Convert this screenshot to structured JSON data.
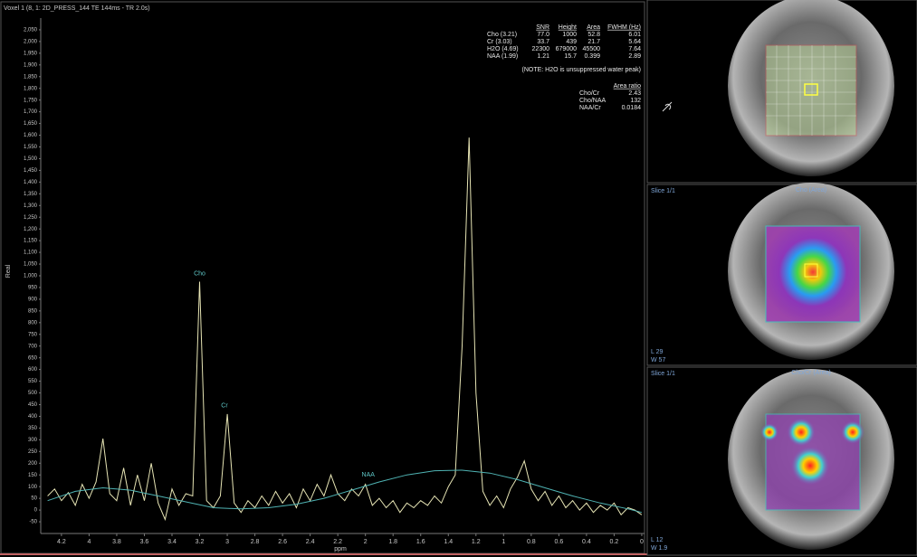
{
  "header": {
    "title": "Voxel 1 (8, 1: 2D_PRESS_144 TE 144ms - TR 2.0s)"
  },
  "chart_data": {
    "type": "line",
    "x_label": "ppm",
    "y_label": "Real",
    "xlim": [
      4.35,
      -0.02
    ],
    "ylim": [
      -100,
      2100
    ],
    "xticks": [
      4.2,
      4,
      3.8,
      3.6,
      3.4,
      3.2,
      3,
      2.8,
      2.6,
      2.4,
      2.2,
      2,
      1.8,
      1.6,
      1.4,
      1.2,
      1,
      0.8,
      0.6,
      0.4,
      0.2,
      0
    ],
    "yticks": [
      -50,
      0,
      50,
      100,
      150,
      200,
      250,
      300,
      350,
      400,
      450,
      500,
      550,
      600,
      650,
      700,
      750,
      800,
      850,
      900,
      950,
      {
        "value": 1000,
        "label": "1,000"
      },
      {
        "value": 1050,
        "label": "1,050"
      },
      {
        "value": 1100,
        "label": "1,100"
      },
      {
        "value": 1150,
        "label": "1,150"
      },
      {
        "value": 1200,
        "label": "1,200"
      },
      {
        "value": 1250,
        "label": "1,250"
      },
      {
        "value": 1300,
        "label": "1,300"
      },
      {
        "value": 1350,
        "label": "1,350"
      },
      {
        "value": 1400,
        "label": "1,400"
      },
      {
        "value": 1450,
        "label": "1,450"
      },
      {
        "value": 1500,
        "label": "1,500"
      },
      {
        "value": 1550,
        "label": "1,550"
      },
      {
        "value": 1600,
        "label": "1,600"
      },
      {
        "value": 1650,
        "label": "1,650"
      },
      {
        "value": 1700,
        "label": "1,700"
      },
      {
        "value": 1750,
        "label": "1,750"
      },
      {
        "value": 1800,
        "label": "1,800"
      },
      {
        "value": 1850,
        "label": "1,850"
      },
      {
        "value": 1900,
        "label": "1,900"
      },
      {
        "value": 1950,
        "label": "1,950"
      },
      {
        "value": 2000,
        "label": "2,000"
      },
      {
        "value": 2050,
        "label": "2,050"
      }
    ],
    "grid": false,
    "series": [
      {
        "color": "#e6e4b4",
        "x": [
          4.3,
          4.25,
          4.2,
          4.15,
          4.1,
          4.05,
          4,
          3.95,
          3.9,
          3.85,
          3.8,
          3.75,
          3.7,
          3.65,
          3.6,
          3.55,
          3.5,
          3.45,
          3.4,
          3.35,
          3.3,
          3.25,
          3.2,
          3.15,
          3.1,
          3.05,
          3,
          2.95,
          2.9,
          2.85,
          2.8,
          2.75,
          2.7,
          2.65,
          2.6,
          2.55,
          2.5,
          2.45,
          2.4,
          2.35,
          2.3,
          2.25,
          2.2,
          2.15,
          2.1,
          2.05,
          2,
          1.95,
          1.9,
          1.85,
          1.8,
          1.75,
          1.7,
          1.65,
          1.6,
          1.55,
          1.5,
          1.45,
          1.4,
          1.35,
          1.3,
          1.25,
          1.2,
          1.15,
          1.1,
          1.05,
          1,
          0.95,
          0.9,
          0.85,
          0.8,
          0.75,
          0.7,
          0.65,
          0.6,
          0.55,
          0.5,
          0.45,
          0.4,
          0.35,
          0.3,
          0.25,
          0.2,
          0.15,
          0.1,
          0.05,
          0
        ],
        "values": [
          60,
          90,
          40,
          75,
          20,
          110,
          50,
          120,
          305,
          70,
          40,
          180,
          20,
          150,
          40,
          200,
          30,
          -40,
          90,
          20,
          70,
          60,
          975,
          40,
          10,
          60,
          410,
          30,
          -10,
          40,
          10,
          60,
          20,
          80,
          30,
          70,
          10,
          90,
          40,
          110,
          60,
          150,
          70,
          40,
          90,
          60,
          110,
          20,
          50,
          10,
          40,
          -10,
          30,
          10,
          40,
          20,
          60,
          30,
          100,
          150,
          700,
          1590,
          500,
          80,
          20,
          60,
          10,
          90,
          140,
          210,
          90,
          40,
          80,
          20,
          60,
          10,
          40,
          0,
          30,
          -10,
          20,
          0,
          30,
          -20,
          10,
          0,
          -20
        ]
      },
      {
        "color": "#4fb3b3",
        "x": [
          4.3,
          4.1,
          3.9,
          3.7,
          3.5,
          3.3,
          3.1,
          2.9,
          2.7,
          2.5,
          2.3,
          2.1,
          1.9,
          1.7,
          1.5,
          1.3,
          1.1,
          0.9,
          0.7,
          0.5,
          0.3,
          0.1,
          0
        ],
        "values": [
          40,
          80,
          95,
          85,
          60,
          35,
          10,
          5,
          10,
          25,
          50,
          85,
          120,
          150,
          168,
          170,
          158,
          130,
          95,
          60,
          30,
          5,
          -10
        ]
      }
    ],
    "annotations": [
      {
        "text": "Cho",
        "x": 3.2,
        "y": 1010
      },
      {
        "text": "Cr",
        "x": 3.02,
        "y": 445
      },
      {
        "text": "NAA",
        "x": 1.98,
        "y": 150
      }
    ]
  },
  "table": {
    "header": [
      "SNR",
      "Height",
      "Area",
      "FWHM (Hz)"
    ],
    "rows": [
      [
        "Cho (3.21)",
        "77.0",
        "1000",
        "52.8",
        "6.01"
      ],
      [
        "Cr (3.03)",
        "33.7",
        "439",
        "21.7",
        "5.64"
      ],
      [
        "H2O (4.69)",
        "22300",
        "679000",
        "45500",
        "7.64"
      ],
      [
        "NAA (1.99)",
        "1.21",
        "15.7",
        "0.399",
        "2.89"
      ]
    ],
    "note": "(NOTE: H2O is unsuppressed water peak)"
  },
  "ratio_table": {
    "header": "Area ratio",
    "rows": [
      [
        "Cho/Cr",
        "2.43"
      ],
      [
        "Cho/NAA",
        "132"
      ],
      [
        "NAA/Cr",
        "0.0184"
      ]
    ]
  },
  "panels": [
    {},
    {
      "slice": "Slice 1/1",
      "map": "Cho (Area)",
      "level": "L 29",
      "width": "W 57"
    },
    {
      "slice": "Slice 1/1",
      "map": "Cho/Cr (Area)",
      "level": "L 12",
      "width": "W 1.9"
    }
  ]
}
